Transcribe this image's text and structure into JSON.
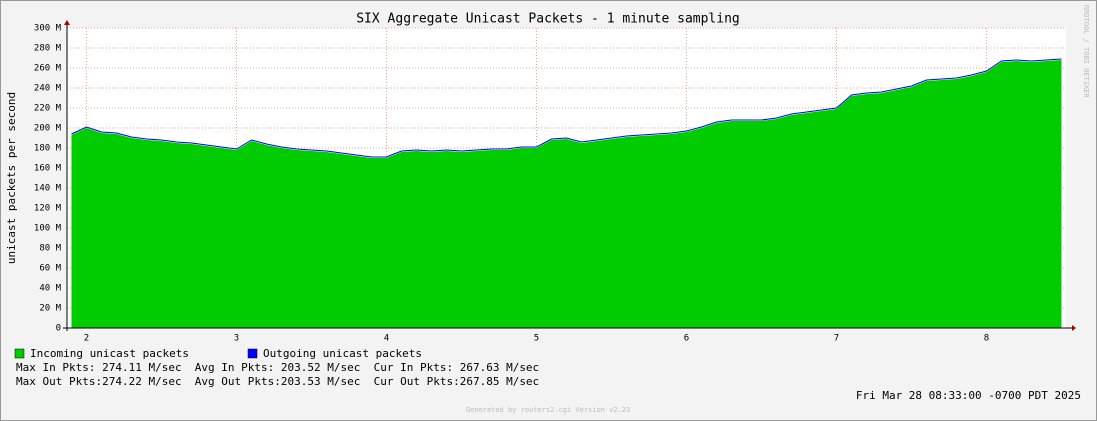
{
  "chart_data": {
    "type": "area-line",
    "title": "SIX Aggregate Unicast Packets - 1 minute sampling",
    "y_label": "unicast packets per second",
    "x": [
      1.9,
      2.0,
      2.1,
      2.2,
      2.3,
      2.4,
      2.5,
      2.6,
      2.7,
      2.8,
      2.9,
      3.0,
      3.1,
      3.2,
      3.3,
      3.4,
      3.5,
      3.6,
      3.7,
      3.8,
      3.9,
      4.0,
      4.1,
      4.2,
      4.3,
      4.4,
      4.5,
      4.6,
      4.7,
      4.8,
      4.9,
      5.0,
      5.1,
      5.2,
      5.3,
      5.4,
      5.5,
      5.6,
      5.7,
      5.8,
      5.9,
      6.0,
      6.1,
      6.2,
      6.3,
      6.4,
      6.5,
      6.6,
      6.7,
      6.8,
      6.9,
      7.0,
      7.1,
      7.2,
      7.3,
      7.4,
      7.5,
      7.6,
      7.7,
      7.8,
      7.9,
      8.0,
      8.1,
      8.2,
      8.3,
      8.4,
      8.5
    ],
    "series": [
      {
        "name": "Incoming unicast packets",
        "color": "#00cc00",
        "style": "area",
        "values": [
          193,
          200,
          195,
          194,
          190,
          188,
          187,
          185,
          184,
          182,
          180,
          178,
          187,
          183,
          180,
          178,
          177,
          176,
          174,
          172,
          170,
          170,
          176,
          177,
          176,
          177,
          176,
          177,
          178,
          178,
          180,
          180,
          188,
          189,
          185,
          187,
          189,
          191,
          192,
          193,
          194,
          196,
          200,
          205,
          207,
          207,
          207,
          209,
          213,
          215,
          217,
          219,
          232,
          234,
          235,
          238,
          241,
          247,
          248,
          249,
          252,
          256,
          266,
          267,
          266,
          267,
          268
        ]
      },
      {
        "name": "Outgoing unicast packets",
        "color": "#0000ff",
        "style": "line",
        "values": [
          194,
          201,
          196,
          195,
          191,
          189,
          188,
          186,
          185,
          183,
          181,
          179,
          188,
          184,
          181,
          179,
          178,
          177,
          175,
          173,
          171,
          171,
          177,
          178,
          177,
          178,
          177,
          178,
          179,
          179,
          181,
          181,
          189,
          190,
          186,
          188,
          190,
          192,
          193,
          194,
          195,
          197,
          201,
          206,
          208,
          208,
          208,
          210,
          214,
          216,
          218,
          220,
          233,
          235,
          236,
          239,
          242,
          248,
          249,
          250,
          253,
          257,
          267,
          268,
          267,
          268,
          269
        ]
      }
    ],
    "xlim": [
      1.87,
      8.53
    ],
    "xticks": [
      2,
      3,
      4,
      5,
      6,
      7,
      8
    ],
    "ylim": [
      0,
      300
    ],
    "yticks": [
      0,
      {
        "value": 20,
        "label": "20 M"
      },
      {
        "value": 40,
        "label": "40 M"
      },
      {
        "value": 60,
        "label": "60 M"
      },
      {
        "value": 80,
        "label": "80 M"
      },
      {
        "value": 100,
        "label": "100 M"
      },
      {
        "value": 120,
        "label": "120 M"
      },
      {
        "value": 140,
        "label": "140 M"
      },
      {
        "value": 160,
        "label": "160 M"
      },
      {
        "value": 180,
        "label": "180 M"
      },
      {
        "value": 200,
        "label": "200 M"
      },
      {
        "value": 220,
        "label": "220 M"
      },
      {
        "value": 240,
        "label": "240 M"
      },
      {
        "value": 260,
        "label": "260 M"
      },
      {
        "value": 280,
        "label": "280 M"
      },
      {
        "value": 300,
        "label": "300 M"
      }
    ],
    "grid": true,
    "stats": [
      "Max In Pkts: 274.11 M/sec  Avg In Pkts: 203.52 M/sec  Cur In Pkts: 267.63 M/sec",
      "Max Out Pkts:274.22 M/sec  Avg Out Pkts:203.53 M/sec  Cur Out Pkts:267.85 M/sec"
    ],
    "timestamp": "Fri Mar 28 08:33:00 -0700 PDT 2025",
    "footer": "Generated by routers2.cgi Version v2.23",
    "watermark": "RRDTOOL / TOBI OETIKER"
  }
}
